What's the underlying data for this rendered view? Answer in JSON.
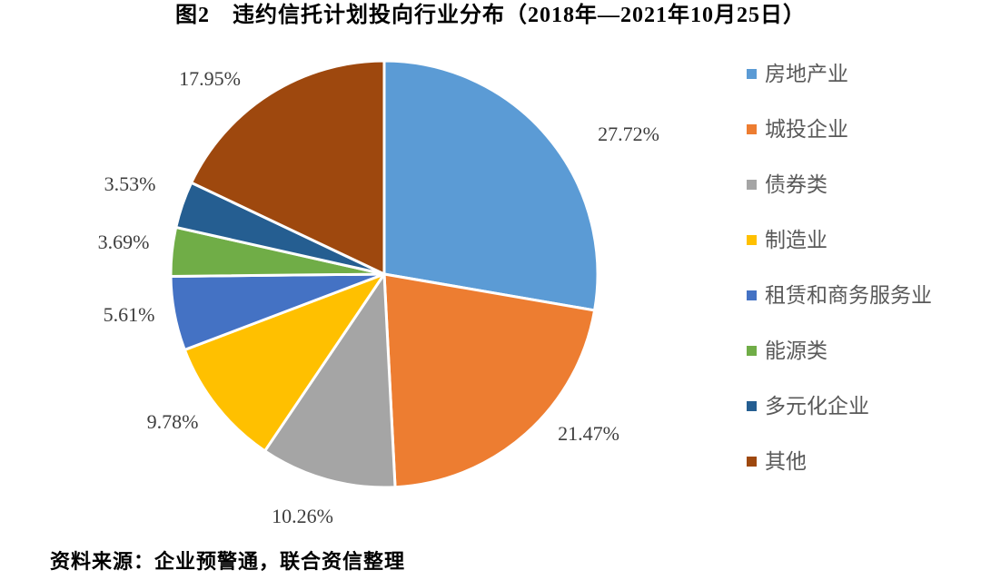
{
  "title": "图2　违约信托计划投向行业分布（2018年—2021年10月25日）",
  "source": "资料来源：企业预警通，联合资信整理",
  "chart_data": {
    "type": "pie",
    "title": "图2　违约信托计划投向行业分布（2018年—2021年10月25日）",
    "categories": [
      "房地产业",
      "城投企业",
      "债券类",
      "制造业",
      "租赁和商务服务业",
      "能源类",
      "多元化企业",
      "其他"
    ],
    "values": [
      27.72,
      21.47,
      10.26,
      9.78,
      5.61,
      3.69,
      3.53,
      17.95
    ],
    "labels": [
      "27.72%",
      "21.47%",
      "10.26%",
      "9.78%",
      "5.61%",
      "3.69%",
      "3.53%",
      "17.95%"
    ],
    "colors": [
      "#5B9BD5",
      "#ED7D31",
      "#A5A5A5",
      "#FFC000",
      "#4472C4",
      "#70AD47",
      "#255E91",
      "#9E480E"
    ],
    "legend_position": "right",
    "start_angle": 0,
    "direction": "clockwise",
    "slice_border_color": "#FFFFFF"
  }
}
